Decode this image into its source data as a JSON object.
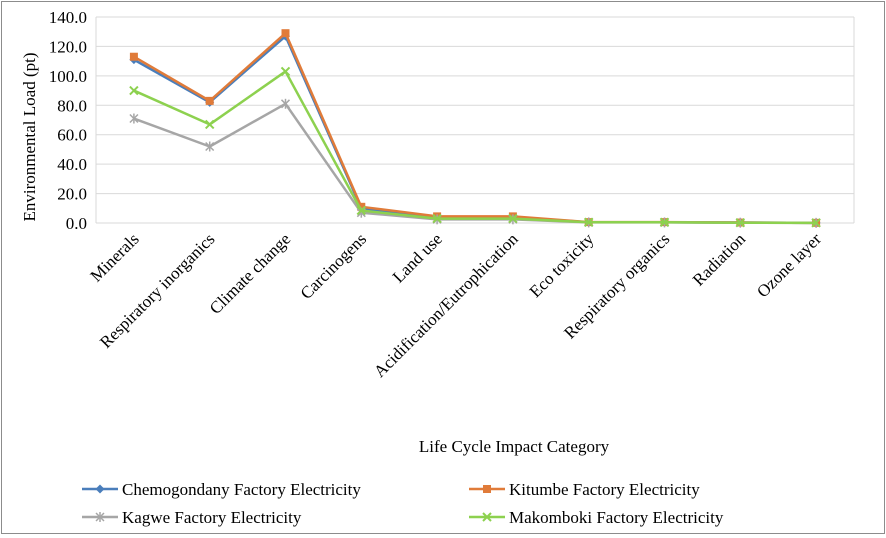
{
  "chart_data": {
    "type": "line",
    "title": "",
    "xlabel": "Life Cycle Impact Category",
    "ylabel": "Environmental Load (pt)",
    "ylim": [
      0,
      140
    ],
    "yticks": [
      0,
      20,
      40,
      60,
      80,
      100,
      120,
      140
    ],
    "ytick_labels": [
      "0.0",
      "20.0",
      "40.0",
      "60.0",
      "80.0",
      "100.0",
      "120.0",
      "140.0"
    ],
    "grid": true,
    "legend_position": "bottom",
    "categories": [
      "Minerals",
      "Respiratory inorganics",
      "Climate change",
      "Carcinogens",
      "Land use",
      "Acidification/Eutrophication",
      "Eco toxicity",
      "Respiratory organics",
      "Radiation",
      "Ozone layer"
    ],
    "series": [
      {
        "name": "Chemogondany Factory Electricity",
        "color": "#4a7ebb",
        "marker": "diamond",
        "values": [
          111,
          82,
          127,
          10,
          4,
          4,
          0.5,
          0.5,
          0.3,
          0.1
        ]
      },
      {
        "name": "Kitumbe Factory Electricity",
        "color": "#e07b39",
        "marker": "square",
        "values": [
          113,
          83,
          129,
          11,
          4.5,
          4.5,
          0.6,
          0.6,
          0.3,
          0.1
        ]
      },
      {
        "name": "Kagwe Factory Electricity",
        "color": "#a6a6a6",
        "marker": "star",
        "values": [
          71,
          52,
          81,
          7,
          2.5,
          2.5,
          0.4,
          0.4,
          0.2,
          0.1
        ]
      },
      {
        "name": "Makomboki Factory Electricity",
        "color": "#8dd14f",
        "marker": "x",
        "values": [
          90,
          67,
          103,
          8.5,
          3,
          3,
          0.5,
          0.5,
          0.2,
          0.1
        ]
      }
    ]
  }
}
